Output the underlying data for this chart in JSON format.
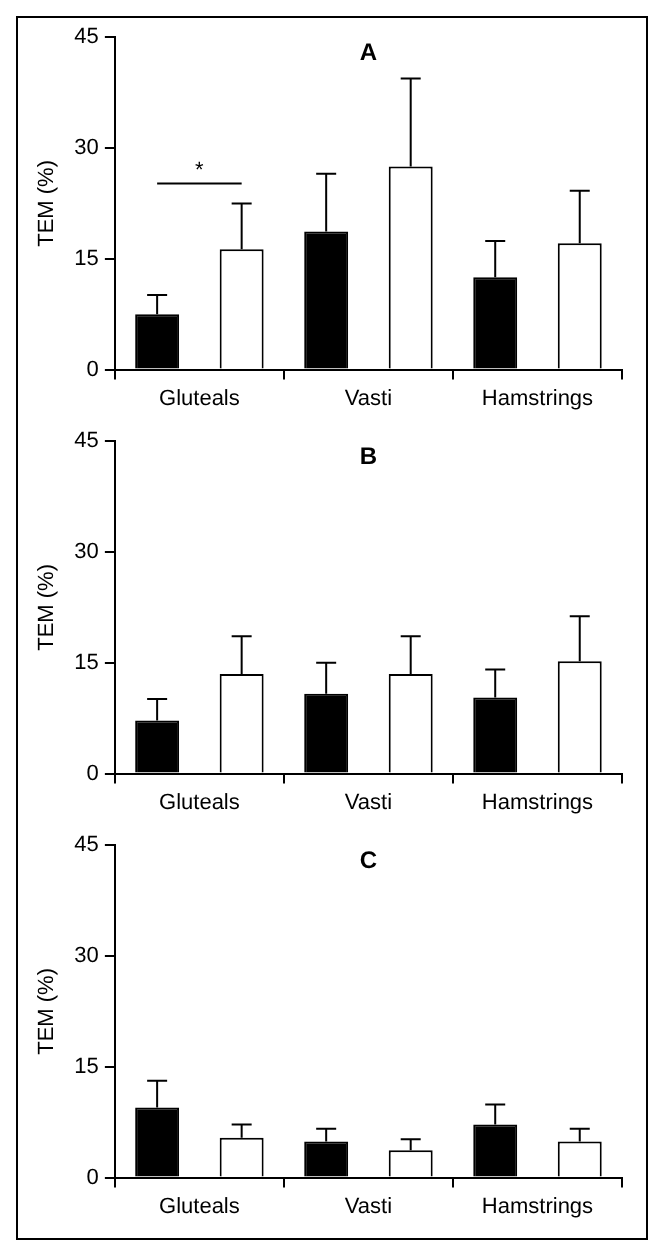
{
  "chart_data": [
    {
      "type": "bar",
      "title": "A",
      "ylabel": "TEM (%)",
      "categories": [
        "Gluteals",
        "Vasti",
        "Hamstrings"
      ],
      "ylim": [
        0,
        45
      ],
      "yticks": [
        0,
        15,
        30,
        45
      ],
      "grid": false,
      "legend": false,
      "annotations": [
        "*"
      ],
      "series": [
        {
          "color": "#000000",
          "values": [
            7.5,
            18.7,
            12.5
          ],
          "errors": [
            2.6,
            7.8,
            4.9
          ]
        },
        {
          "color": "#ffffff",
          "values": [
            16.3,
            27.5,
            17.1
          ],
          "errors": [
            6.2,
            11.9,
            7.1
          ]
        }
      ]
    },
    {
      "type": "bar",
      "title": "B",
      "ylabel": "TEM (%)",
      "categories": [
        "Gluteals",
        "Vasti",
        "Hamstrings"
      ],
      "ylim": [
        0,
        45
      ],
      "yticks": [
        0,
        15,
        30,
        45
      ],
      "grid": false,
      "legend": false,
      "series": [
        {
          "color": "#000000",
          "values": [
            7.2,
            10.8,
            10.3
          ],
          "errors": [
            2.9,
            4.2,
            3.8
          ]
        },
        {
          "color": "#ffffff",
          "values": [
            13.5,
            13.5,
            15.2
          ],
          "errors": [
            5.1,
            5.1,
            6.1
          ]
        }
      ]
    },
    {
      "type": "bar",
      "title": "C",
      "ylabel": "TEM (%)",
      "categories": [
        "Gluteals",
        "Vasti",
        "Hamstrings"
      ],
      "ylim": [
        0,
        45
      ],
      "yticks": [
        0,
        15,
        30,
        45
      ],
      "grid": false,
      "legend": false,
      "series": [
        {
          "color": "#000000",
          "values": [
            9.5,
            4.9,
            7.2
          ],
          "errors": [
            3.6,
            1.7,
            2.7
          ]
        },
        {
          "color": "#ffffff",
          "values": [
            5.4,
            3.7,
            4.9
          ],
          "errors": [
            1.8,
            1.5,
            1.7
          ]
        }
      ]
    }
  ]
}
